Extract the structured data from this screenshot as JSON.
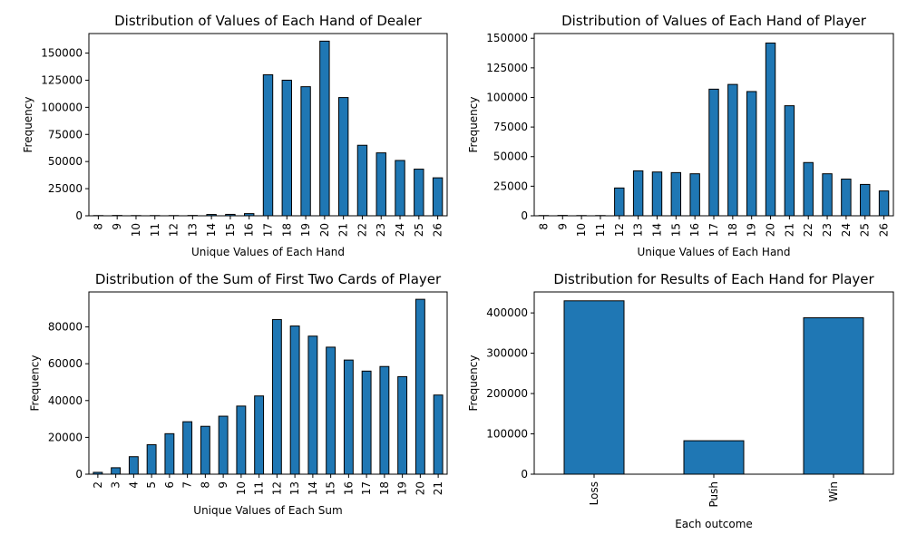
{
  "chart_data": [
    {
      "id": "dealer",
      "type": "bar",
      "title": "Distribution of Values of Each Hand of Dealer",
      "xlabel": "Unique Values of Each Hand",
      "ylabel": "Frequency",
      "ylim": [
        0,
        168000
      ],
      "yticks": [
        0,
        25000,
        50000,
        75000,
        100000,
        125000,
        150000
      ],
      "categories": [
        "8",
        "9",
        "10",
        "11",
        "12",
        "13",
        "14",
        "15",
        "16",
        "17",
        "18",
        "19",
        "20",
        "21",
        "22",
        "23",
        "24",
        "25",
        "26"
      ],
      "values": [
        200,
        300,
        200,
        200,
        200,
        300,
        1200,
        1300,
        2000,
        130000,
        125000,
        119000,
        161000,
        109000,
        65000,
        58000,
        51000,
        43000,
        35000
      ],
      "bar_color": "#1f77b4"
    },
    {
      "id": "player",
      "type": "bar",
      "title": "Distribution of Values of Each Hand of Player",
      "xlabel": "Unique Values of Each Hand",
      "ylabel": "Frequency",
      "ylim": [
        0,
        154000
      ],
      "yticks": [
        0,
        25000,
        50000,
        75000,
        100000,
        125000,
        150000
      ],
      "categories": [
        "8",
        "9",
        "10",
        "11",
        "12",
        "13",
        "14",
        "15",
        "16",
        "17",
        "18",
        "19",
        "20",
        "21",
        "22",
        "23",
        "24",
        "25",
        "26"
      ],
      "values": [
        200,
        300,
        200,
        200,
        23500,
        38000,
        37000,
        36500,
        35500,
        107000,
        111000,
        105000,
        146000,
        93000,
        45000,
        35500,
        31000,
        26500,
        21000
      ],
      "bar_color": "#1f77b4"
    },
    {
      "id": "first-two",
      "type": "bar",
      "title": "Distribution of the Sum of First Two Cards of Player",
      "xlabel": "Unique Values of Each Sum",
      "ylabel": "Frequency",
      "ylim": [
        0,
        99000
      ],
      "yticks": [
        0,
        20000,
        40000,
        60000,
        80000
      ],
      "categories": [
        "2",
        "3",
        "4",
        "5",
        "6",
        "7",
        "8",
        "9",
        "10",
        "11",
        "12",
        "13",
        "14",
        "15",
        "16",
        "17",
        "18",
        "19",
        "20",
        "21"
      ],
      "values": [
        1000,
        3500,
        9500,
        16000,
        22000,
        28500,
        26000,
        31500,
        37000,
        42500,
        84000,
        80500,
        75000,
        69000,
        62000,
        56000,
        58500,
        53000,
        95000,
        43000
      ],
      "bar_color": "#1f77b4"
    },
    {
      "id": "results",
      "type": "bar",
      "title": "Distribution for Results of Each Hand for Player",
      "xlabel": "Each outcome",
      "ylabel": "Frequency",
      "ylim": [
        0,
        452000
      ],
      "yticks": [
        0,
        100000,
        200000,
        300000,
        400000
      ],
      "categories": [
        "Loss",
        "Push",
        "Win"
      ],
      "values": [
        430000,
        83000,
        388000
      ],
      "bar_color": "#1f77b4"
    }
  ]
}
